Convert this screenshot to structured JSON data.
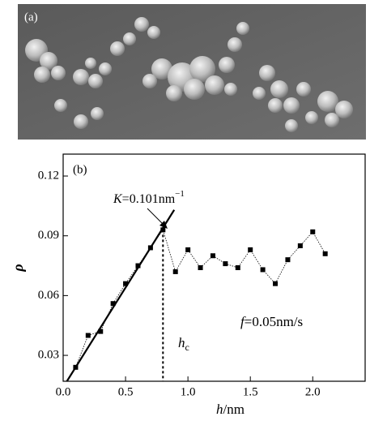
{
  "panel_a_label": "(a)",
  "chart_data": {
    "type": "line",
    "panel_label": "(b)",
    "x_label": {
      "symbol": "h",
      "unit": "/nm"
    },
    "y_label": "ρ",
    "x": [
      0.1,
      0.2,
      0.3,
      0.4,
      0.5,
      0.6,
      0.7,
      0.8,
      0.9,
      1.0,
      1.1,
      1.2,
      1.3,
      1.4,
      1.5,
      1.6,
      1.7,
      1.8,
      1.9,
      2.0,
      2.1
    ],
    "series": [
      {
        "color": "#000000",
        "values": [
          0.024,
          0.04,
          0.042,
          0.056,
          0.066,
          0.075,
          0.084,
          0.093,
          0.072,
          0.083,
          0.074,
          0.08,
          0.076,
          0.074,
          0.083,
          0.073,
          0.066,
          0.078,
          0.085,
          0.092,
          0.081
        ]
      }
    ],
    "fit_line": {
      "x": [
        0.03,
        0.89
      ],
      "values": [
        0.017,
        0.103
      ]
    },
    "hc": 0.8,
    "annotations": {
      "slope": {
        "symbol": "K",
        "text": "=0.101nm",
        "sup": "−1"
      },
      "rate": {
        "symbol": "f",
        "text": "=0.05nm/s"
      },
      "hc_label": {
        "symbol": "h",
        "sub": "c"
      }
    },
    "xlim": [
      0,
      2.42
    ],
    "ylim": [
      0.017,
      0.131
    ],
    "xticks": [
      {
        "value": 0,
        "label": "0.0"
      },
      0.5,
      {
        "value": 1,
        "label": "1.0"
      },
      1.5,
      {
        "value": 2,
        "label": "2.0"
      }
    ],
    "yticks": [
      0.03,
      0.06,
      0.09,
      0.12
    ]
  }
}
